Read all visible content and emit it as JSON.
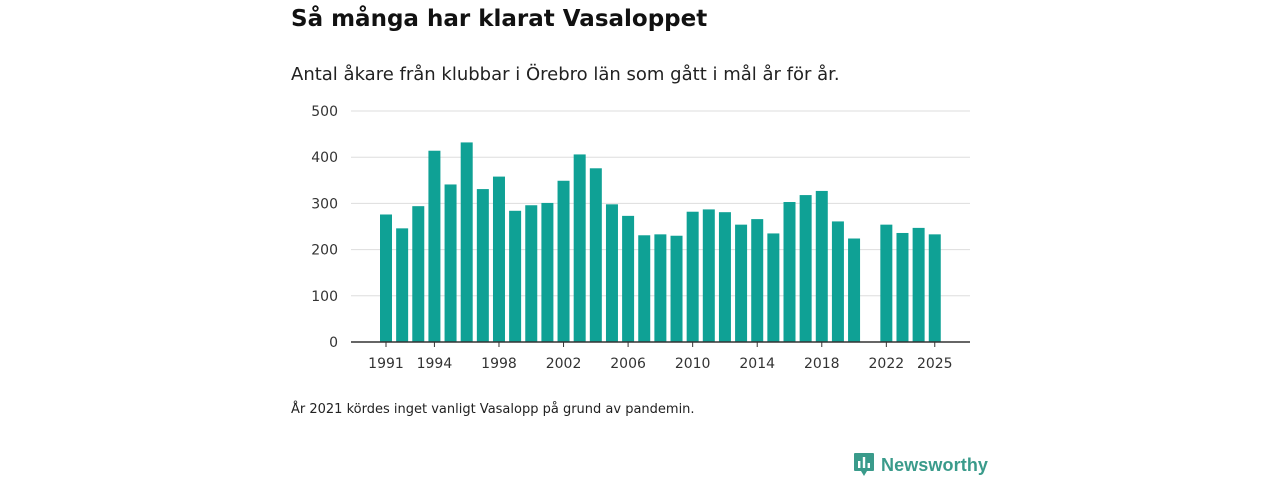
{
  "title": "Så många har klarat Vasaloppet",
  "subtitle": "Antal åkare från klubbar i Örebro län som gått i mål år för år.",
  "note": "År 2021 kördes inget vanligt Vasalopp på grund av pandemin.",
  "brand": {
    "name": "Newsworthy",
    "color": "#3a9b8b"
  },
  "colors": {
    "bar": "#0fa195",
    "grid": "#dddddd",
    "axis": "#333333"
  },
  "chart_data": {
    "type": "bar",
    "title": "Så många har klarat Vasaloppet",
    "xlabel": "",
    "ylabel": "",
    "ylim": [
      0,
      500
    ],
    "yticks": [
      0,
      100,
      200,
      300,
      400,
      500
    ],
    "xticks": [
      1991,
      1994,
      1998,
      2002,
      2006,
      2010,
      2014,
      2018,
      2022,
      2025
    ],
    "categories": [
      1991,
      1992,
      1993,
      1994,
      1995,
      1996,
      1997,
      1998,
      1999,
      2000,
      2001,
      2002,
      2003,
      2004,
      2005,
      2006,
      2007,
      2008,
      2009,
      2010,
      2011,
      2012,
      2013,
      2014,
      2015,
      2016,
      2017,
      2018,
      2019,
      2020,
      2021,
      2022,
      2023,
      2024,
      2025
    ],
    "values": [
      276,
      246,
      294,
      414,
      341,
      432,
      331,
      358,
      284,
      296,
      301,
      349,
      406,
      376,
      298,
      273,
      231,
      233,
      230,
      282,
      287,
      281,
      254,
      266,
      235,
      303,
      318,
      327,
      261,
      224,
      null,
      254,
      236,
      247,
      233
    ],
    "grid": true
  }
}
